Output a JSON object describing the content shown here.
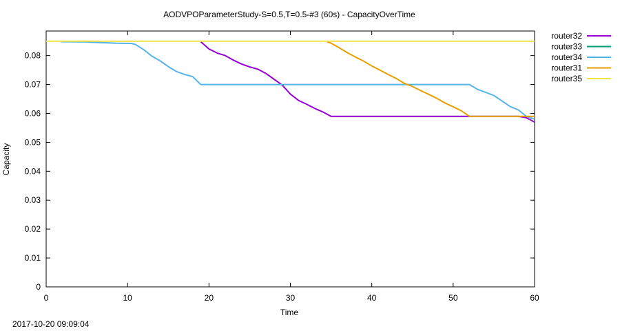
{
  "chart_data": {
    "type": "line",
    "title": "AODVPOParameterStudy-S=0.5,T=0.5-#3 (60s) - CapacityOverTime",
    "xlabel": "Time",
    "ylabel": "Capacity",
    "xlim": [
      0,
      60
    ],
    "ylim": [
      0,
      0.085
    ],
    "xticks": [
      0,
      10,
      20,
      30,
      40,
      50,
      60
    ],
    "yticks": [
      0,
      0.01,
      0.02,
      0.03,
      0.04,
      0.05,
      0.06,
      0.07,
      0.08
    ],
    "xtick_labels": [
      "0",
      "10",
      "20",
      "30",
      "40",
      "50",
      "60"
    ],
    "ytick_labels": [
      "0",
      "0.01",
      "0.02",
      "0.03",
      "0.04",
      "0.05",
      "0.06",
      "0.07",
      "0.08"
    ],
    "grid": false,
    "legend_position": "outside-right",
    "series": [
      {
        "name": "router32",
        "color": "#9400d3",
        "x": [
          19,
          20,
          21,
          22,
          23,
          24,
          25,
          26,
          27,
          28,
          29,
          30,
          31,
          32,
          33,
          34,
          35,
          40,
          45,
          50,
          55,
          58,
          59,
          60
        ],
        "y": [
          0.0848,
          0.0823,
          0.0809,
          0.08,
          0.0784,
          0.0771,
          0.0761,
          0.0753,
          0.0738,
          0.0718,
          0.0698,
          0.0667,
          0.0645,
          0.0632,
          0.0617,
          0.0605,
          0.059,
          0.059,
          0.059,
          0.059,
          0.059,
          0.059,
          0.0585,
          0.057
        ]
      },
      {
        "name": "router33",
        "color": "#009e73",
        "x": [],
        "y": []
      },
      {
        "name": "router34",
        "color": "#56b4e9",
        "x": [
          1.8,
          5,
          8.5,
          10.5,
          11,
          12,
          13,
          14,
          15,
          16,
          17,
          18,
          19,
          25,
          30,
          35,
          40,
          45,
          50,
          52,
          53,
          54,
          55,
          56,
          57,
          58,
          59,
          60
        ],
        "y": [
          0.0848,
          0.0847,
          0.0843,
          0.0842,
          0.0838,
          0.082,
          0.0798,
          0.0782,
          0.0762,
          0.0745,
          0.0735,
          0.0727,
          0.07,
          0.07,
          0.07,
          0.07,
          0.07,
          0.07,
          0.07,
          0.07,
          0.0683,
          0.0673,
          0.0662,
          0.0643,
          0.0624,
          0.0612,
          0.059,
          0.058
        ]
      },
      {
        "name": "router31",
        "color": "#e69f00",
        "x": [
          34.5,
          35,
          36,
          37,
          38,
          39,
          40,
          41,
          42,
          43,
          44,
          45,
          46,
          47,
          48,
          49,
          50,
          51,
          52,
          55,
          58,
          60
        ],
        "y": [
          0.0848,
          0.0843,
          0.0827,
          0.081,
          0.0795,
          0.0781,
          0.0764,
          0.075,
          0.0735,
          0.0721,
          0.0704,
          0.0693,
          0.0679,
          0.0666,
          0.0652,
          0.0636,
          0.0623,
          0.0609,
          0.059,
          0.059,
          0.059,
          0.059
        ]
      },
      {
        "name": "router35",
        "color": "#f0e442",
        "x": [
          0,
          60
        ],
        "y": [
          0.085,
          0.085
        ]
      }
    ]
  },
  "timestamp": "2017-10-20 09:09:04"
}
